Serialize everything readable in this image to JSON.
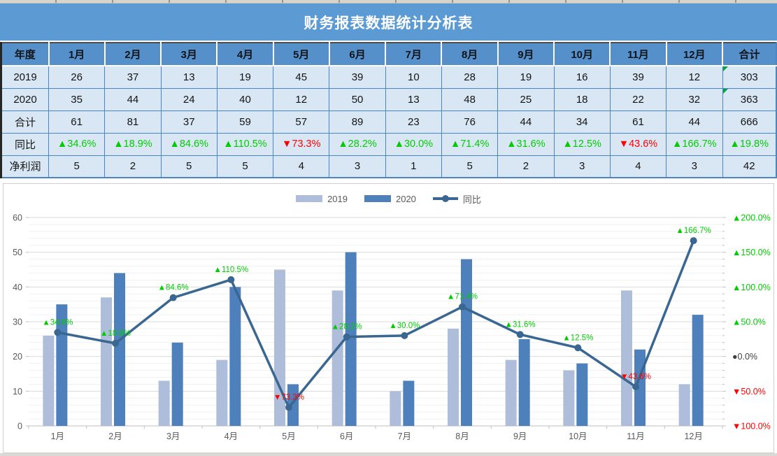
{
  "title": "财务报表数据统计分析表",
  "table": {
    "columns": [
      "年度",
      "1月",
      "2月",
      "3月",
      "4月",
      "5月",
      "6月",
      "7月",
      "8月",
      "9月",
      "10月",
      "11月",
      "12月",
      "合计"
    ],
    "rows": [
      {
        "label": "2019",
        "cells": [
          "26",
          "37",
          "13",
          "19",
          "45",
          "39",
          "10",
          "28",
          "19",
          "16",
          "39",
          "12",
          "303"
        ],
        "flag_last": true,
        "styled": "plain"
      },
      {
        "label": "2020",
        "cells": [
          "35",
          "44",
          "24",
          "40",
          "12",
          "50",
          "13",
          "48",
          "25",
          "18",
          "22",
          "32",
          "363"
        ],
        "flag_last": true,
        "styled": "plain"
      },
      {
        "label": "合计",
        "cells": [
          "61",
          "81",
          "37",
          "59",
          "57",
          "89",
          "23",
          "76",
          "44",
          "34",
          "61",
          "44",
          "666"
        ],
        "flag_last": false,
        "styled": "plain"
      },
      {
        "label": "同比",
        "cells": [
          "▲34.6%",
          "▲18.9%",
          "▲84.6%",
          "▲110.5%",
          "▼73.3%",
          "▲28.2%",
          "▲30.0%",
          "▲71.4%",
          "▲31.6%",
          "▲12.5%",
          "▼43.6%",
          "▲166.7%",
          "▲19.8%"
        ],
        "flag_last": false,
        "styled": "trend"
      },
      {
        "label": "净利润",
        "cells": [
          "5",
          "2",
          "5",
          "5",
          "4",
          "3",
          "1",
          "5",
          "2",
          "3",
          "4",
          "3",
          "42"
        ],
        "flag_last": false,
        "styled": "plain"
      }
    ]
  },
  "chart_data": {
    "type": "combo",
    "categories": [
      "1月",
      "2月",
      "3月",
      "4月",
      "5月",
      "6月",
      "7月",
      "8月",
      "9月",
      "10月",
      "11月",
      "12月"
    ],
    "series": [
      {
        "name": "2019",
        "type": "bar",
        "color": "#adbdda",
        "values": [
          26,
          37,
          13,
          19,
          45,
          39,
          10,
          28,
          19,
          16,
          39,
          12
        ]
      },
      {
        "name": "2020",
        "type": "bar",
        "color": "#4e80bb",
        "values": [
          35,
          44,
          24,
          40,
          12,
          50,
          13,
          48,
          25,
          18,
          22,
          32
        ]
      },
      {
        "name": "同比",
        "type": "line",
        "color": "#3a6791",
        "values": [
          34.6,
          18.9,
          84.6,
          110.5,
          -73.3,
          28.2,
          30.0,
          71.4,
          31.6,
          12.5,
          -43.6,
          166.7
        ]
      }
    ],
    "left_axis": {
      "min": 0,
      "max": 60,
      "ticks": [
        60,
        50,
        40,
        30,
        20,
        10,
        0
      ],
      "minor_step": 2
    },
    "right_axis": {
      "min": -100,
      "max": 200,
      "ticks": [
        {
          "label": "▲200.0%",
          "value": 200
        },
        {
          "label": "▲150.0%",
          "value": 150
        },
        {
          "label": "▲100.0%",
          "value": 100
        },
        {
          "label": "▲50.0%",
          "value": 50
        },
        {
          "label": "●0.0%",
          "value": 0
        },
        {
          "label": "▼50.0%",
          "value": -50
        },
        {
          "label": "▼100.0%",
          "value": -100
        }
      ]
    },
    "legend": [
      "2019",
      "2020",
      "同比"
    ],
    "legend_position": "top",
    "grid": true
  },
  "colors": {
    "up_green": "#00cc00",
    "down_red": "#ff0000",
    "neutral_tick": "#404040",
    "axis_text": "#595959",
    "grid_major": "#d9d9d9",
    "grid_minor": "#f1f1f1",
    "axis_line": "#bfbfbf"
  }
}
